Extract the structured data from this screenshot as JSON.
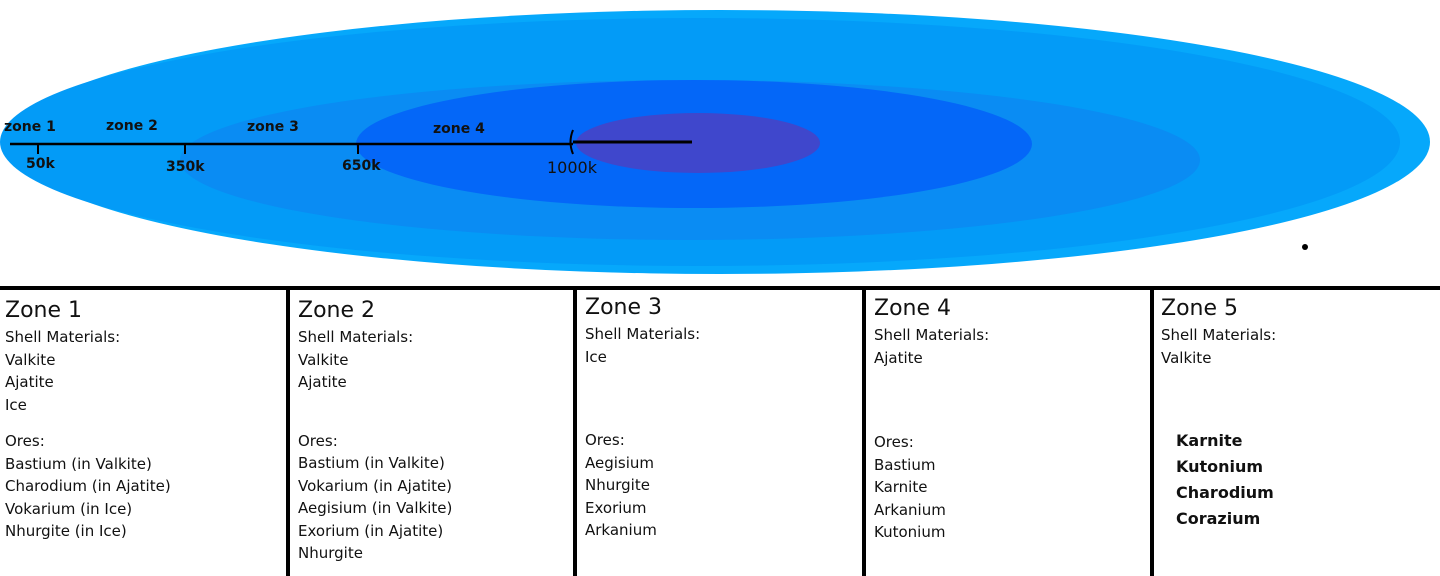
{
  "diagram": {
    "zone_labels": [
      "zone 1",
      "zone 2",
      "zone 3",
      "zone 4"
    ],
    "tick_labels": [
      "50k",
      "350k",
      "650k",
      "1000k"
    ],
    "colors": {
      "ring1": "#06a8fb",
      "ring2": "#039bf7",
      "ring3": "#0a8cf3",
      "ring4": "#0467f8",
      "core": "#3f47cc"
    }
  },
  "zones": [
    {
      "title": "Zone 1",
      "shell_label": "Shell Materials:",
      "shell": [
        "Valkite",
        "Ajatite",
        "Ice"
      ],
      "ores_label": "Ores:",
      "ores": [
        "Bastium (in Valkite)",
        "Charodium (in Ajatite)",
        "Vokarium (in Ice)",
        "Nhurgite (in Ice)"
      ]
    },
    {
      "title": "Zone 2",
      "shell_label": "Shell Materials:",
      "shell": [
        "Valkite",
        "Ajatite"
      ],
      "ores_label": "Ores:",
      "ores": [
        "Bastium (in Valkite)",
        "Vokarium (in Ajatite)",
        "Aegisium (in Valkite)",
        "Exorium (in Ajatite)",
        "Nhurgite"
      ]
    },
    {
      "title": "Zone 3",
      "shell_label": "Shell Materials:",
      "shell": [
        "Ice"
      ],
      "ores_label": "Ores:",
      "ores": [
        "Aegisium",
        "Nhurgite",
        "Exorium",
        "Arkanium"
      ]
    },
    {
      "title": "Zone 4",
      "shell_label": "Shell Materials:",
      "shell": [
        "Ajatite"
      ],
      "ores_label": "Ores:",
      "ores": [
        "Bastium",
        "Karnite",
        "Arkanium",
        "Kutonium"
      ]
    },
    {
      "title": "Zone 5",
      "shell_label": "Shell Materials:",
      "shell": [
        "Valkite"
      ],
      "ores_label": "",
      "ores": [
        "Karnite",
        "Kutonium",
        "Charodium",
        "Corazium"
      ]
    }
  ]
}
